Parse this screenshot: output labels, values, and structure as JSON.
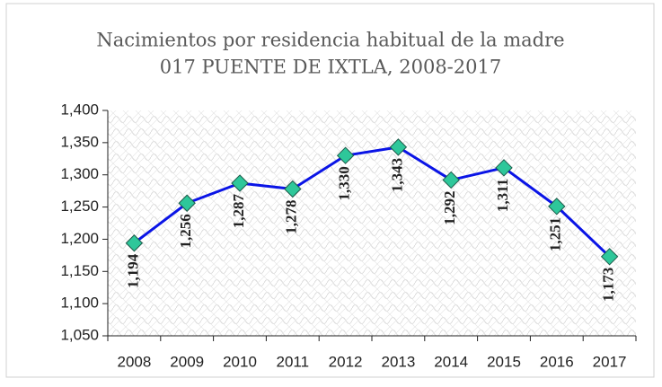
{
  "chart_data": {
    "type": "line",
    "title": "Nacimientos por residencia habitual de la madre",
    "subtitle": "017 PUENTE DE IXTLA, 2008-2017",
    "categories": [
      "2008",
      "2009",
      "2010",
      "2011",
      "2012",
      "2013",
      "2014",
      "2015",
      "2016",
      "2017"
    ],
    "series": [
      {
        "name": "Nacimientos",
        "color": "#0a14e6",
        "marker_color": "#2ec79a",
        "values": [
          1194,
          1256,
          1287,
          1278,
          1330,
          1343,
          1292,
          1311,
          1251,
          1173
        ],
        "value_labels": [
          "1,194",
          "1,256",
          "1,287",
          "1,278",
          "1,330",
          "1,343",
          "1,292",
          "1,311",
          "1,251",
          "1,173"
        ]
      }
    ],
    "ylim": [
      1050,
      1400
    ],
    "yticks": [
      {
        "value": 1050,
        "label": "1,050"
      },
      {
        "value": 1100,
        "label": "1,100"
      },
      {
        "value": 1150,
        "label": "1,150"
      },
      {
        "value": 1200,
        "label": "1,200"
      },
      {
        "value": 1250,
        "label": "1,250"
      },
      {
        "value": 1300,
        "label": "1,300"
      },
      {
        "value": 1350,
        "label": "1,350"
      },
      {
        "value": 1400,
        "label": "1,400"
      }
    ],
    "grid": false
  }
}
